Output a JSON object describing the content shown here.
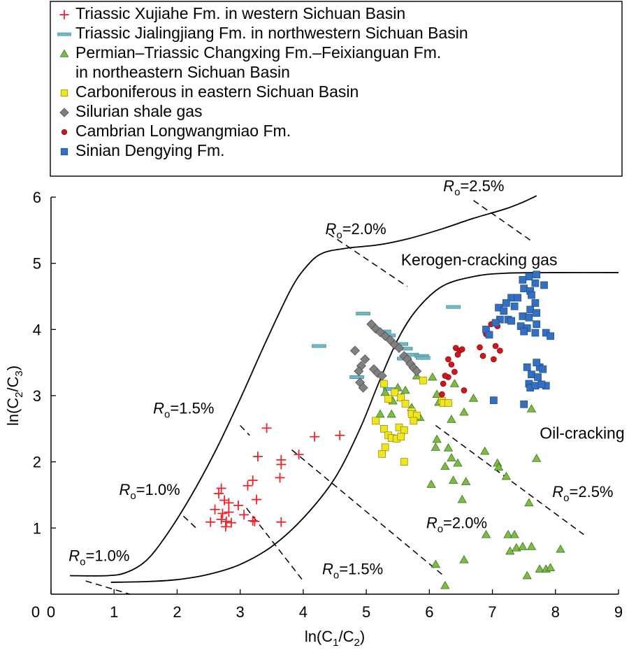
{
  "chart_data": {
    "type": "scatter",
    "xlabel": "ln(C1/C2)",
    "ylabel": "ln(C2/C3)",
    "xlim": [
      0,
      9
    ],
    "ylim": [
      0,
      6
    ],
    "xticks": [
      0,
      1,
      2,
      3,
      4,
      5,
      6,
      7,
      8,
      9
    ],
    "yticks": [
      1,
      2,
      3,
      4,
      5,
      6
    ],
    "legend_position": "top",
    "series": [
      {
        "name": "Triassic Xujiahe Fm. in western Sichuan Basin",
        "marker": "plus",
        "color": "#e8262b",
        "points": [
          [
            3.42,
            2.51
          ],
          [
            4.18,
            2.38
          ],
          [
            4.58,
            2.4
          ],
          [
            3.28,
            2.08
          ],
          [
            3.65,
            2.03
          ],
          [
            3.65,
            1.96
          ],
          [
            3.93,
            2.11
          ],
          [
            3.63,
            1.76
          ],
          [
            3.2,
            1.72
          ],
          [
            3.12,
            1.64
          ],
          [
            3.26,
            1.43
          ],
          [
            2.7,
            1.6
          ],
          [
            2.66,
            1.52
          ],
          [
            2.75,
            1.42
          ],
          [
            2.82,
            1.38
          ],
          [
            2.97,
            1.34
          ],
          [
            2.6,
            1.28
          ],
          [
            2.72,
            1.22
          ],
          [
            2.82,
            1.24
          ],
          [
            3.06,
            1.2
          ],
          [
            2.53,
            1.09
          ],
          [
            2.7,
            1.13
          ],
          [
            2.78,
            1.1
          ],
          [
            2.86,
            1.08
          ],
          [
            3.2,
            1.11
          ],
          [
            3.23,
            1.1
          ],
          [
            2.77,
            1.02
          ],
          [
            3.65,
            1.09
          ]
        ]
      },
      {
        "name": "Triassic Jialingjiang Fm. in northwestern Sichuan Basin",
        "marker": "dash",
        "color": "#6fb8c9",
        "points": [
          [
            4.25,
            3.75
          ],
          [
            4.95,
            4.24
          ],
          [
            5.28,
            3.97
          ],
          [
            5.35,
            3.91
          ],
          [
            5.55,
            3.78
          ],
          [
            5.62,
            3.71
          ],
          [
            5.72,
            3.62
          ],
          [
            5.88,
            3.6
          ],
          [
            5.9,
            3.57
          ],
          [
            5.6,
            3.56
          ],
          [
            4.85,
            3.28
          ],
          [
            5.38,
            3.1
          ],
          [
            6.38,
            4.34
          ]
        ]
      },
      {
        "name": "Permian–Triassic Changxing Fm.–Feixianguan Fm. in northeastern Sichuan Basin",
        "marker": "triangle",
        "color": "#7ebb43",
        "points": [
          [
            5.3,
            3.05
          ],
          [
            5.5,
            3.12
          ],
          [
            5.62,
            3.08
          ],
          [
            5.8,
            3.3
          ],
          [
            5.55,
            2.97
          ],
          [
            5.42,
            2.92
          ],
          [
            5.72,
            2.82
          ],
          [
            5.85,
            2.67
          ],
          [
            5.4,
            2.72
          ],
          [
            5.22,
            2.72
          ],
          [
            6.05,
            3.28
          ],
          [
            6.12,
            3.02
          ],
          [
            6.4,
            3.18
          ],
          [
            6.55,
            2.75
          ],
          [
            6.7,
            2.96
          ],
          [
            6.15,
            2.9
          ],
          [
            6.35,
            2.64
          ],
          [
            6.12,
            2.34
          ],
          [
            6.1,
            2.22
          ],
          [
            6.3,
            2.21
          ],
          [
            6.35,
            2.06
          ],
          [
            6.45,
            1.98
          ],
          [
            6.25,
            1.93
          ],
          [
            6.38,
            1.72
          ],
          [
            6.03,
            1.66
          ],
          [
            6.58,
            1.7
          ],
          [
            6.88,
            2.16
          ],
          [
            7.08,
            1.98
          ],
          [
            7.1,
            1.92
          ],
          [
            7.22,
            1.78
          ],
          [
            7.62,
            2.8
          ],
          [
            7.7,
            2.05
          ],
          [
            6.52,
            1.43
          ],
          [
            7.58,
            1.38
          ],
          [
            6.9,
            0.9
          ],
          [
            7.25,
            0.9
          ],
          [
            7.35,
            0.9
          ],
          [
            7.28,
            0.65
          ],
          [
            7.38,
            0.7
          ],
          [
            7.48,
            0.72
          ],
          [
            7.62,
            0.72
          ],
          [
            7.75,
            0.38
          ],
          [
            7.85,
            0.38
          ],
          [
            7.92,
            0.4
          ],
          [
            7.55,
            0.28
          ],
          [
            8.08,
            0.68
          ],
          [
            6.55,
            0.52
          ],
          [
            6.1,
            0.45
          ],
          [
            6.25,
            0.13
          ]
        ]
      },
      {
        "name": "Carboniferous in eastern Sichuan Basin",
        "marker": "square",
        "color": "#f0e61c",
        "points": [
          [
            5.28,
            3.18
          ],
          [
            5.45,
            3.05
          ],
          [
            5.55,
            2.97
          ],
          [
            5.35,
            2.95
          ],
          [
            5.62,
            2.88
          ],
          [
            5.9,
            3.23
          ],
          [
            6.2,
            2.92
          ],
          [
            6.22,
            2.89
          ],
          [
            6.3,
            2.89
          ],
          [
            5.72,
            2.76
          ],
          [
            5.72,
            2.72
          ],
          [
            5.8,
            2.7
          ],
          [
            5.75,
            2.62
          ],
          [
            5.15,
            2.62
          ],
          [
            5.28,
            2.5
          ],
          [
            5.52,
            2.52
          ],
          [
            5.6,
            2.48
          ],
          [
            5.35,
            2.4
          ],
          [
            5.4,
            2.36
          ],
          [
            5.48,
            2.35
          ],
          [
            5.55,
            2.38
          ],
          [
            5.3,
            2.22
          ],
          [
            5.25,
            2.12
          ],
          [
            5.6,
            2.0
          ]
        ]
      },
      {
        "name": "Silurian shale gas",
        "marker": "diamond",
        "color": "#808080",
        "points": [
          [
            5.08,
            4.08
          ],
          [
            5.15,
            4.01
          ],
          [
            5.22,
            3.96
          ],
          [
            5.3,
            3.9
          ],
          [
            5.38,
            3.84
          ],
          [
            5.45,
            3.77
          ],
          [
            5.52,
            3.72
          ],
          [
            5.6,
            3.6
          ],
          [
            5.65,
            3.55
          ],
          [
            5.7,
            3.48
          ],
          [
            5.75,
            3.42
          ],
          [
            5.8,
            3.37
          ],
          [
            4.82,
            3.68
          ],
          [
            4.98,
            3.55
          ],
          [
            4.92,
            3.45
          ],
          [
            4.88,
            3.37
          ],
          [
            5.12,
            3.4
          ],
          [
            5.18,
            3.34
          ],
          [
            5.25,
            3.3
          ],
          [
            4.9,
            3.2
          ],
          [
            4.95,
            3.12
          ]
        ]
      },
      {
        "name": "Cambrian Longwangmiao Fm.",
        "marker": "circle",
        "color": "#d0151c",
        "points": [
          [
            6.98,
            4.08
          ],
          [
            7.08,
            4.05
          ],
          [
            6.9,
            3.93
          ],
          [
            7.05,
            3.75
          ],
          [
            6.8,
            3.73
          ],
          [
            7.12,
            3.68
          ],
          [
            6.42,
            3.72
          ],
          [
            6.48,
            3.68
          ],
          [
            6.52,
            3.7
          ],
          [
            6.45,
            3.62
          ],
          [
            6.85,
            3.6
          ],
          [
            7.02,
            3.55
          ],
          [
            6.3,
            3.55
          ],
          [
            6.35,
            3.47
          ],
          [
            6.4,
            3.36
          ],
          [
            6.3,
            3.28
          ],
          [
            6.25,
            3.3
          ],
          [
            6.22,
            3.18
          ],
          [
            6.55,
            3.08
          ],
          [
            6.2,
            3.02
          ]
        ]
      },
      {
        "name": "Sinian Dengying Fm.",
        "marker": "square",
        "color": "#3470c2",
        "points": [
          [
            7.58,
            4.8
          ],
          [
            7.7,
            4.83
          ],
          [
            7.48,
            4.75
          ],
          [
            7.68,
            4.7
          ],
          [
            7.82,
            4.67
          ],
          [
            7.5,
            4.62
          ],
          [
            7.6,
            4.58
          ],
          [
            7.3,
            4.48
          ],
          [
            7.4,
            4.48
          ],
          [
            7.62,
            4.52
          ],
          [
            7.68,
            4.4
          ],
          [
            7.22,
            4.4
          ],
          [
            7.1,
            4.33
          ],
          [
            7.35,
            4.35
          ],
          [
            7.18,
            4.28
          ],
          [
            7.6,
            4.3
          ],
          [
            7.7,
            4.25
          ],
          [
            7.48,
            4.2
          ],
          [
            7.58,
            4.18
          ],
          [
            7.12,
            4.15
          ],
          [
            7.25,
            4.15
          ],
          [
            7.3,
            4.13
          ],
          [
            7.45,
            4.05
          ],
          [
            7.05,
            4.1
          ],
          [
            7.7,
            4.08
          ],
          [
            7.55,
            4.02
          ],
          [
            6.9,
            4.0
          ],
          [
            7.5,
            3.97
          ],
          [
            6.95,
            3.92
          ],
          [
            7.68,
            3.95
          ],
          [
            7.85,
            3.95
          ],
          [
            7.92,
            3.9
          ],
          [
            7.55,
            3.43
          ],
          [
            7.75,
            3.43
          ],
          [
            7.7,
            3.5
          ],
          [
            7.8,
            3.4
          ],
          [
            7.62,
            3.32
          ],
          [
            7.72,
            3.28
          ],
          [
            7.58,
            3.18
          ],
          [
            7.6,
            3.12
          ],
          [
            7.68,
            3.15
          ],
          [
            7.85,
            3.15
          ],
          [
            7.78,
            3.17
          ],
          [
            7.02,
            2.93
          ],
          [
            7.5,
            2.87
          ]
        ]
      }
    ],
    "curves": [
      {
        "name": "upper-boundary",
        "points": [
          [
            0.3,
            0.28
          ],
          [
            0.9,
            0.28
          ],
          [
            1.2,
            0.33
          ],
          [
            1.5,
            0.5
          ],
          [
            1.8,
            0.85
          ],
          [
            2.2,
            1.45
          ],
          [
            2.6,
            2.15
          ],
          [
            3.0,
            2.95
          ],
          [
            3.4,
            3.8
          ],
          [
            3.8,
            4.6
          ],
          [
            4.05,
            4.95
          ],
          [
            4.3,
            5.15
          ],
          [
            4.7,
            5.23
          ],
          [
            5.2,
            5.28
          ],
          [
            5.7,
            5.38
          ],
          [
            6.2,
            5.52
          ],
          [
            6.7,
            5.68
          ],
          [
            7.2,
            5.82
          ],
          [
            7.5,
            5.93
          ],
          [
            7.7,
            6.02
          ]
        ]
      },
      {
        "name": "lower-boundary",
        "points": [
          [
            0.95,
            0.18
          ],
          [
            1.5,
            0.19
          ],
          [
            2.0,
            0.22
          ],
          [
            2.5,
            0.3
          ],
          [
            3.0,
            0.45
          ],
          [
            3.5,
            0.72
          ],
          [
            4.0,
            1.15
          ],
          [
            4.5,
            1.75
          ],
          [
            4.9,
            2.5
          ],
          [
            5.2,
            3.2
          ],
          [
            5.5,
            3.85
          ],
          [
            5.8,
            4.3
          ],
          [
            6.2,
            4.65
          ],
          [
            6.7,
            4.8
          ],
          [
            7.2,
            4.85
          ],
          [
            8.0,
            4.86
          ],
          [
            9.0,
            4.86
          ]
        ]
      }
    ],
    "isolines": [
      {
        "label": "Ro=1.0%",
        "from": [
          0.55,
          0.2
        ],
        "to": [
          1.25,
          0.0
        ]
      },
      {
        "label": "Ro=1.5%",
        "from": [
          3.1,
          1.3
        ],
        "to": [
          4.0,
          0.2
        ]
      },
      {
        "label": "Ro=2.0%",
        "from": [
          3.82,
          2.18
        ],
        "to": [
          6.2,
          0.3
        ]
      },
      {
        "label": "Ro=2.5%",
        "from": [
          6.1,
          2.55
        ],
        "to": [
          8.45,
          0.9
        ]
      },
      {
        "label": "Ro=1.0%",
        "from": [
          2.1,
          1.18
        ],
        "to": [
          2.3,
          1.0
        ]
      },
      {
        "label": "Ro=1.5%",
        "from": [
          3.0,
          2.55
        ],
        "to": [
          3.15,
          2.4
        ]
      },
      {
        "label": "Ro=2.0%",
        "from": [
          4.4,
          5.45
        ],
        "to": [
          5.65,
          4.65
        ]
      },
      {
        "label": "Ro=2.5%",
        "from": [
          6.7,
          5.95
        ],
        "to": [
          7.6,
          5.35
        ]
      }
    ],
    "annotations": [
      {
        "text": "Kerogen-cracking gas",
        "x": 5.55,
        "y": 4.97
      },
      {
        "text": "Oil-cracking gas",
        "x": 7.75,
        "y": 2.35
      }
    ],
    "ro_labels": [
      {
        "value": "=2.5%",
        "x": 6.22,
        "y": 6.09
      },
      {
        "value": "=2.0%",
        "x": 4.35,
        "y": 5.44
      },
      {
        "value": "=1.5%",
        "x": 1.62,
        "y": 2.73
      },
      {
        "value": "=1.0%",
        "x": 1.08,
        "y": 1.5
      },
      {
        "value": "=2.5%",
        "x": 7.95,
        "y": 1.47
      },
      {
        "value": "=2.0%",
        "x": 5.95,
        "y": 1.0
      },
      {
        "value": "=1.5%",
        "x": 4.3,
        "y": 0.3
      },
      {
        "value": "=1.0%",
        "x": 0.28,
        "y": 0.5
      }
    ],
    "ro_prefix": "R",
    "ro_sub": "o"
  },
  "legend": {
    "entries": [
      {
        "lines": [
          "Triassic Xujiahe Fm. in western Sichuan Basin"
        ]
      },
      {
        "lines": [
          "Triassic Jialingjiang Fm. in northwestern Sichuan Basin"
        ]
      },
      {
        "lines": [
          "Permian–Triassic Changxing Fm.–Feixianguan Fm.",
          "in northeastern Sichuan Basin"
        ]
      },
      {
        "lines": [
          "Carboniferous in eastern Sichuan Basin"
        ]
      },
      {
        "lines": [
          "Silurian shale gas"
        ]
      },
      {
        "lines": [
          "Cambrian Longwangmiao Fm."
        ]
      },
      {
        "lines": [
          "Sinian Dengying Fm."
        ]
      }
    ]
  },
  "axis_labels": {
    "x_main": "ln(C",
    "x_sub1": "1",
    "x_mid": "/C",
    "x_sub2": "2",
    "x_end": ")",
    "y_main": "ln(C",
    "y_sub1": "2",
    "y_mid": "/C",
    "y_sub2": "3",
    "y_end": ")"
  }
}
